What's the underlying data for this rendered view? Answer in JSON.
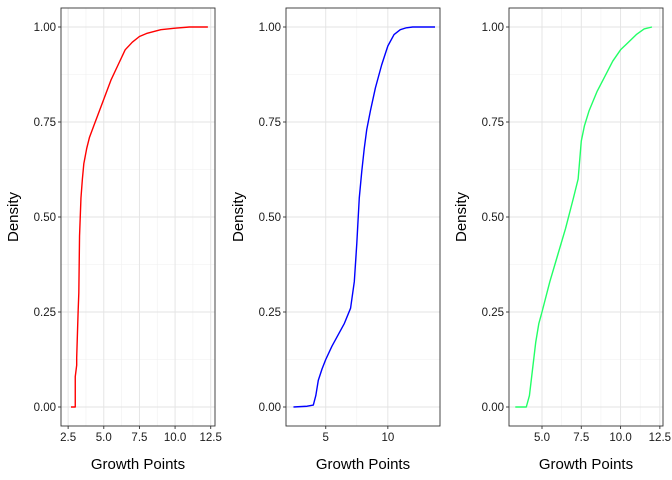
{
  "chart_data": [
    {
      "type": "line",
      "xlabel": "Growth Points",
      "ylabel": "Density",
      "xlim": [
        2.0,
        12.8
      ],
      "ylim": [
        -0.05,
        1.05
      ],
      "xticks": [
        2.5,
        5.0,
        7.5,
        10.0,
        12.5
      ],
      "xtick_labels": [
        "2.5",
        "5.0",
        "7.5",
        "10.0",
        "12.5"
      ],
      "yticks": [
        0.0,
        0.25,
        0.5,
        0.75,
        1.0
      ],
      "ytick_labels": [
        "0.00",
        "0.25",
        "0.50",
        "0.75",
        "1.00"
      ],
      "grid": true,
      "color": "#ff0000",
      "series": [
        {
          "x": [
            2.7,
            3.0,
            3.0,
            3.1,
            3.1,
            3.2,
            3.25,
            3.3,
            3.35,
            3.4,
            3.5,
            3.6,
            3.8,
            4.0,
            4.3,
            4.7,
            5.0,
            5.5,
            6.0,
            6.5,
            7.0,
            7.5,
            8.0,
            9.0,
            10.0,
            11.0,
            12.3
          ],
          "y": [
            0.0,
            0.0,
            0.08,
            0.11,
            0.13,
            0.25,
            0.3,
            0.45,
            0.5,
            0.55,
            0.6,
            0.64,
            0.68,
            0.71,
            0.74,
            0.78,
            0.81,
            0.86,
            0.9,
            0.94,
            0.96,
            0.975,
            0.983,
            0.993,
            0.997,
            1.0,
            1.0
          ]
        }
      ]
    },
    {
      "type": "line",
      "xlabel": "Growth Points",
      "ylabel": "Density",
      "xlim": [
        1.8,
        14.2
      ],
      "ylim": [
        -0.05,
        1.05
      ],
      "xticks": [
        5,
        10
      ],
      "xtick_labels": [
        "5",
        "10"
      ],
      "yticks": [
        0.0,
        0.25,
        0.5,
        0.75,
        1.0
      ],
      "ytick_labels": [
        "0.00",
        "0.25",
        "0.50",
        "0.75",
        "1.00"
      ],
      "grid": true,
      "color": "#0000ff",
      "series": [
        {
          "x": [
            2.4,
            3.5,
            4.0,
            4.2,
            4.4,
            4.7,
            5.0,
            5.5,
            6.0,
            6.5,
            7.0,
            7.3,
            7.5,
            7.7,
            7.9,
            8.1,
            8.3,
            8.6,
            9.0,
            9.5,
            10.0,
            10.5,
            11.0,
            11.5,
            12.0,
            13.8
          ],
          "y": [
            0.0,
            0.002,
            0.005,
            0.03,
            0.07,
            0.1,
            0.125,
            0.16,
            0.19,
            0.22,
            0.26,
            0.33,
            0.43,
            0.55,
            0.62,
            0.68,
            0.73,
            0.78,
            0.84,
            0.9,
            0.95,
            0.98,
            0.993,
            0.998,
            1.0,
            1.0
          ]
        }
      ]
    },
    {
      "type": "line",
      "xlabel": "Growth Points",
      "ylabel": "Density",
      "xlim": [
        2.9,
        12.7
      ],
      "ylim": [
        -0.05,
        1.05
      ],
      "xticks": [
        5.0,
        7.5,
        10.0,
        12.5
      ],
      "xtick_labels": [
        "5.0",
        "7.5",
        "10.0",
        "12.5"
      ],
      "yticks": [
        0.0,
        0.25,
        0.5,
        0.75,
        1.0
      ],
      "ytick_labels": [
        "0.00",
        "0.25",
        "0.50",
        "0.75",
        "1.00"
      ],
      "grid": true,
      "color": "#22ff66",
      "series": [
        {
          "x": [
            3.3,
            4.0,
            4.2,
            4.4,
            4.6,
            4.8,
            5.0,
            5.5,
            6.0,
            6.5,
            7.0,
            7.3,
            7.5,
            7.7,
            8.0,
            8.5,
            9.0,
            9.5,
            10.0,
            10.5,
            11.0,
            11.5,
            12.0
          ],
          "y": [
            0.0,
            0.0,
            0.03,
            0.1,
            0.17,
            0.22,
            0.25,
            0.33,
            0.4,
            0.47,
            0.55,
            0.6,
            0.7,
            0.74,
            0.78,
            0.83,
            0.87,
            0.91,
            0.94,
            0.96,
            0.98,
            0.995,
            1.0
          ]
        }
      ]
    }
  ]
}
